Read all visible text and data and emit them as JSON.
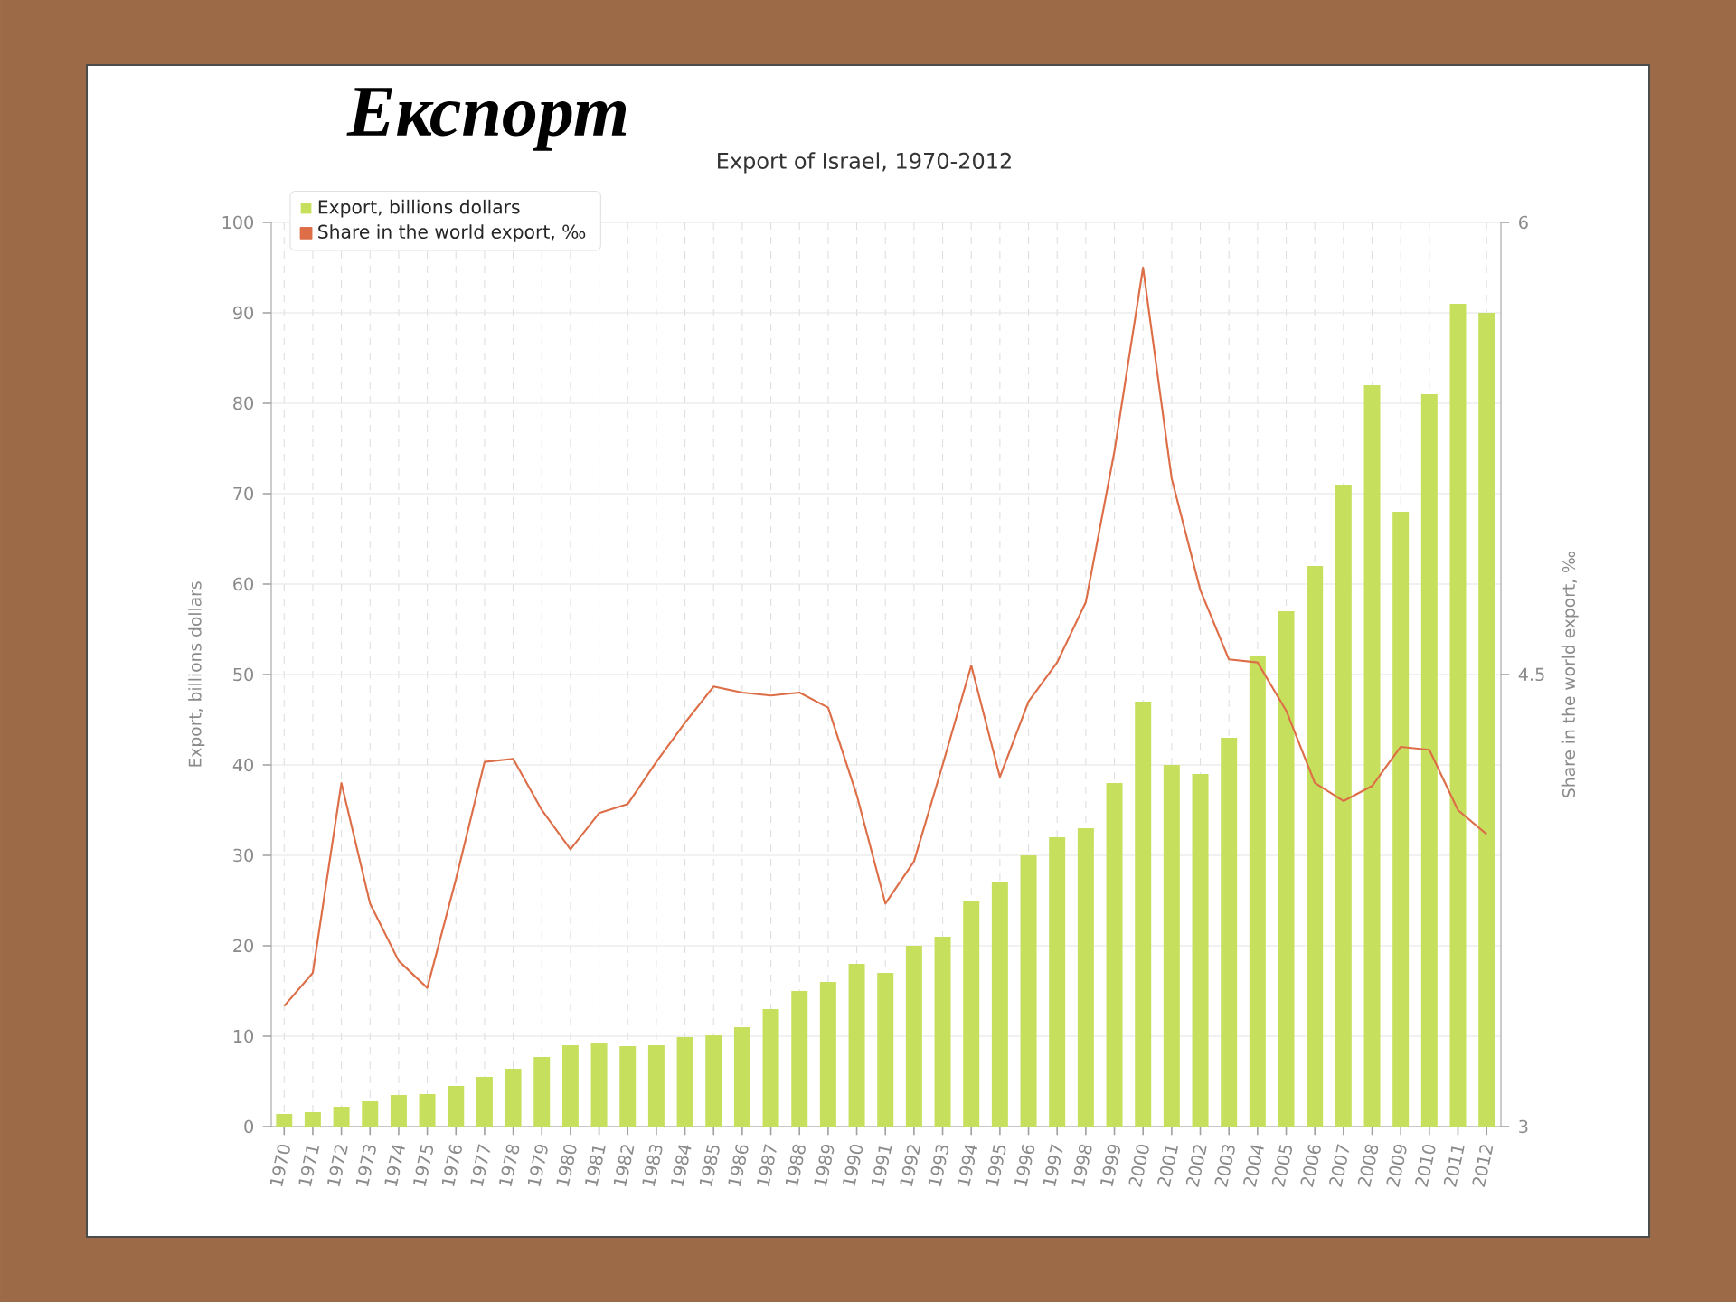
{
  "chart_data": {
    "type": "bar",
    "title": "Експорт",
    "subtitle": "Export of Israel, 1970-2012",
    "ylabel": "Export, billions dollars",
    "y2label": "Share in the world export, ‰",
    "categories": [
      "1970",
      "1971",
      "1972",
      "1973",
      "1974",
      "1975",
      "1976",
      "1977",
      "1978",
      "1979",
      "1980",
      "1981",
      "1982",
      "1983",
      "1984",
      "1985",
      "1986",
      "1987",
      "1988",
      "1989",
      "1990",
      "1991",
      "1992",
      "1993",
      "1994",
      "1995",
      "1996",
      "1997",
      "1998",
      "1999",
      "2000",
      "2001",
      "2002",
      "2003",
      "2004",
      "2005",
      "2006",
      "2007",
      "2008",
      "2009",
      "2010",
      "2011",
      "2012"
    ],
    "series": [
      {
        "name": "Export, billions dollars",
        "color": "#c6e05e",
        "values": [
          1.4,
          1.6,
          2.2,
          2.8,
          3.5,
          3.6,
          4.5,
          5.5,
          6.4,
          7.7,
          9.0,
          9.3,
          8.9,
          9.0,
          9.9,
          10.1,
          11,
          13,
          15,
          16,
          18,
          17,
          20,
          21,
          25,
          27,
          30,
          32,
          33,
          38,
          47,
          40,
          39,
          43,
          52,
          57,
          62,
          71,
          82,
          68,
          81,
          91,
          90
        ]
      },
      {
        "name": "Share in the world export, ‰",
        "type": "line",
        "axis": "y2",
        "color": "#dd6e48",
        "values": [
          3.4,
          3.51,
          4.14,
          3.74,
          3.55,
          3.46,
          3.82,
          4.21,
          4.22,
          4.05,
          3.92,
          4.04,
          4.07,
          4.21,
          4.34,
          4.46,
          4.44,
          4.43,
          4.44,
          4.39,
          4.1,
          3.74,
          3.88,
          4.2,
          4.53,
          4.16,
          4.41,
          4.54,
          4.74,
          5.24,
          5.85,
          5.15,
          4.78,
          4.55,
          4.54,
          4.38,
          4.14,
          4.08,
          4.13,
          4.26,
          4.25,
          4.05,
          3.97
        ]
      }
    ],
    "ylim": [
      0,
      100
    ],
    "yticks": [
      0,
      10,
      20,
      30,
      40,
      50,
      60,
      70,
      80,
      90,
      100
    ],
    "y2lim": [
      3,
      6
    ],
    "y2ticks": [
      3,
      4.5,
      6
    ],
    "grid": true,
    "legend": "top left",
    "marker": "none"
  }
}
